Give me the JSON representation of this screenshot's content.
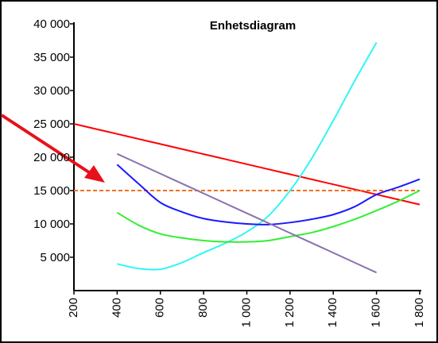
{
  "chart_data": {
    "type": "line",
    "title": "Enhetsdiagram",
    "x": [
      200,
      300,
      400,
      500,
      600,
      700,
      800,
      900,
      1000,
      1100,
      1200,
      1300,
      1400,
      1500,
      1600,
      1700,
      1800
    ],
    "series": [
      {
        "color": "#ff0000",
        "style": "solid",
        "values": [
          25000,
          24240,
          23490,
          22730,
          21980,
          21220,
          20460,
          19710,
          18950,
          18190,
          17440,
          16680,
          15930,
          15170,
          14410,
          13660,
          12900
        ]
      },
      {
        "color": "#f07020",
        "style": "dashed",
        "values": [
          15000,
          15000,
          15000,
          15000,
          15000,
          15000,
          15000,
          15000,
          15000,
          15000,
          15000,
          15000,
          15000,
          15000,
          15000,
          15000,
          15000
        ]
      },
      {
        "color": "#33f5f5",
        "style": "solid",
        "values": [
          null,
          null,
          4000,
          3300,
          3200,
          4200,
          5700,
          7100,
          8800,
          11200,
          15000,
          19800,
          25500,
          31500,
          37200,
          null,
          null
        ]
      },
      {
        "color": "#1a1aff",
        "style": "solid",
        "values": [
          null,
          null,
          18900,
          16000,
          13200,
          11800,
          10800,
          10300,
          10000,
          9900,
          10200,
          10700,
          11400,
          12600,
          14400,
          15500,
          16700
        ]
      },
      {
        "color": "#33ee33",
        "style": "solid",
        "values": [
          null,
          null,
          11700,
          9800,
          8500,
          7900,
          7500,
          7300,
          7300,
          7500,
          8100,
          8700,
          9600,
          10700,
          12000,
          13400,
          15000
        ]
      },
      {
        "color": "#8a70b0",
        "style": "solid",
        "values": [
          null,
          null,
          20500,
          19020,
          17530,
          16050,
          14570,
          13080,
          11600,
          10120,
          8630,
          7150,
          5670,
          4180,
          2700,
          null,
          null
        ]
      }
    ],
    "xlim": [
      200,
      1800
    ],
    "xticks": [
      200,
      400,
      600,
      800,
      {
        "value": 1000,
        "label": "1 000"
      },
      {
        "value": 1200,
        "label": "1 200"
      },
      {
        "value": 1400,
        "label": "1 400"
      },
      {
        "value": 1600,
        "label": "1 600"
      },
      {
        "value": 1800,
        "label": "1 800"
      }
    ],
    "ylim": [
      0,
      40000
    ],
    "yticks": [
      {
        "value": 5000,
        "label": "5 000"
      },
      {
        "value": 10000,
        "label": "10 000"
      },
      {
        "value": 15000,
        "label": "15 000"
      },
      {
        "value": 20000,
        "label": "20 000"
      },
      {
        "value": 25000,
        "label": "25 000"
      },
      {
        "value": 30000,
        "label": "30 000"
      },
      {
        "value": 35000,
        "label": "35 000"
      },
      {
        "value": 40000,
        "label": "40 000"
      }
    ],
    "grid": false
  }
}
